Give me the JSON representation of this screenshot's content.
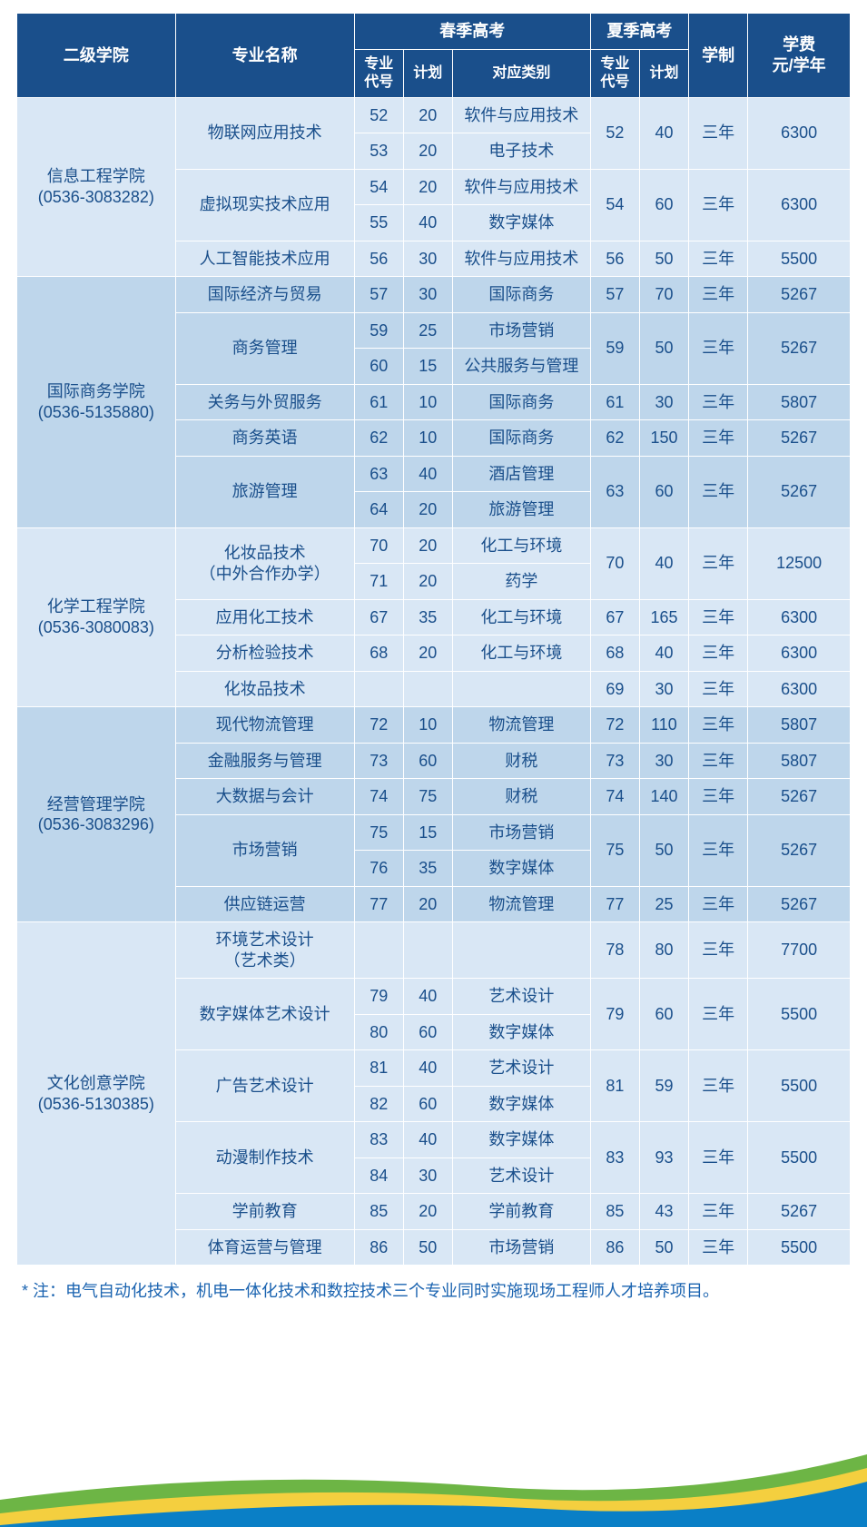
{
  "headers": {
    "college": "二级学院",
    "major": "专业名称",
    "spring": "春季高考",
    "summer": "夏季高考",
    "system": "学制",
    "tuition": "学费\n元/学年",
    "code": "专业\n代号",
    "plan": "计划",
    "category": "对应类别"
  },
  "note": "* 注：电气自动化技术，机电一体化技术和数控技术三个专业同时实施现场工程师人才培养项目。",
  "colors": {
    "header_bg": "#1a4f8b",
    "header_fg": "#ffffff",
    "row_light": "#d9e7f5",
    "row_dark": "#bed6eb",
    "text": "#1a4f8b",
    "note": "#1a63b0",
    "wave_green": "#6db545",
    "wave_yellow": "#f4cf3f",
    "wave_blue": "#0a7fc6"
  },
  "groups": [
    {
      "college": "信息工程学院\n(0536-3083282)",
      "shade": "even",
      "rows": [
        {
          "major": "物联网应用技术",
          "mrs": 2,
          "sc": "52",
          "sp": "20",
          "cat": "软件与应用技术",
          "xc": "52",
          "xcr": 2,
          "xp": "40",
          "xpr": 2,
          "sys": "三年",
          "sysr": 2,
          "fee": "6300",
          "feer": 2
        },
        {
          "sc": "53",
          "sp": "20",
          "cat": "电子技术"
        },
        {
          "major": "虚拟现实技术应用",
          "mrs": 2,
          "sc": "54",
          "sp": "20",
          "cat": "软件与应用技术",
          "xc": "54",
          "xcr": 2,
          "xp": "60",
          "xpr": 2,
          "sys": "三年",
          "sysr": 2,
          "fee": "6300",
          "feer": 2
        },
        {
          "sc": "55",
          "sp": "40",
          "cat": "数字媒体"
        },
        {
          "major": "人工智能技术应用",
          "sc": "56",
          "sp": "30",
          "cat": "软件与应用技术",
          "xc": "56",
          "xp": "50",
          "sys": "三年",
          "fee": "5500"
        }
      ]
    },
    {
      "college": "国际商务学院\n(0536-5135880)",
      "shade": "odd",
      "rows": [
        {
          "major": "国际经济与贸易",
          "sc": "57",
          "sp": "30",
          "cat": "国际商务",
          "xc": "57",
          "xp": "70",
          "sys": "三年",
          "fee": "5267"
        },
        {
          "major": "商务管理",
          "mrs": 2,
          "sc": "59",
          "sp": "25",
          "cat": "市场营销",
          "xc": "59",
          "xcr": 2,
          "xp": "50",
          "xpr": 2,
          "sys": "三年",
          "sysr": 2,
          "fee": "5267",
          "feer": 2
        },
        {
          "sc": "60",
          "sp": "15",
          "cat": "公共服务与管理"
        },
        {
          "major": "关务与外贸服务",
          "sc": "61",
          "sp": "10",
          "cat": "国际商务",
          "xc": "61",
          "xp": "30",
          "sys": "三年",
          "fee": "5807"
        },
        {
          "major": "商务英语",
          "sc": "62",
          "sp": "10",
          "cat": "国际商务",
          "xc": "62",
          "xp": "150",
          "sys": "三年",
          "fee": "5267"
        },
        {
          "major": "旅游管理",
          "mrs": 2,
          "sc": "63",
          "sp": "40",
          "cat": "酒店管理",
          "xc": "63",
          "xcr": 2,
          "xp": "60",
          "xpr": 2,
          "sys": "三年",
          "sysr": 2,
          "fee": "5267",
          "feer": 2
        },
        {
          "sc": "64",
          "sp": "20",
          "cat": "旅游管理"
        }
      ]
    },
    {
      "college": "化学工程学院\n(0536-3080083)",
      "shade": "even",
      "rows": [
        {
          "major": "化妆品技术\n（中外合作办学）",
          "mrs": 2,
          "sc": "70",
          "sp": "20",
          "cat": "化工与环境",
          "xc": "70",
          "xcr": 2,
          "xp": "40",
          "xpr": 2,
          "sys": "三年",
          "sysr": 2,
          "fee": "12500",
          "feer": 2
        },
        {
          "sc": "71",
          "sp": "20",
          "cat": "药学"
        },
        {
          "major": "应用化工技术",
          "sc": "67",
          "sp": "35",
          "cat": "化工与环境",
          "xc": "67",
          "xp": "165",
          "sys": "三年",
          "fee": "6300"
        },
        {
          "major": "分析检验技术",
          "sc": "68",
          "sp": "20",
          "cat": "化工与环境",
          "xc": "68",
          "xp": "40",
          "sys": "三年",
          "fee": "6300"
        },
        {
          "major": "化妆品技术",
          "sc": "",
          "sp": "",
          "cat": "",
          "xc": "69",
          "xp": "30",
          "sys": "三年",
          "fee": "6300"
        }
      ]
    },
    {
      "college": "经营管理学院\n(0536-3083296)",
      "shade": "odd",
      "rows": [
        {
          "major": "现代物流管理",
          "sc": "72",
          "sp": "10",
          "cat": "物流管理",
          "xc": "72",
          "xp": "110",
          "sys": "三年",
          "fee": "5807"
        },
        {
          "major": "金融服务与管理",
          "sc": "73",
          "sp": "60",
          "cat": "财税",
          "xc": "73",
          "xp": "30",
          "sys": "三年",
          "fee": "5807"
        },
        {
          "major": "大数据与会计",
          "sc": "74",
          "sp": "75",
          "cat": "财税",
          "xc": "74",
          "xp": "140",
          "sys": "三年",
          "fee": "5267"
        },
        {
          "major": "市场营销",
          "mrs": 2,
          "sc": "75",
          "sp": "15",
          "cat": "市场营销",
          "xc": "75",
          "xcr": 2,
          "xp": "50",
          "xpr": 2,
          "sys": "三年",
          "sysr": 2,
          "fee": "5267",
          "feer": 2
        },
        {
          "sc": "76",
          "sp": "35",
          "cat": "数字媒体"
        },
        {
          "major": "供应链运营",
          "sc": "77",
          "sp": "20",
          "cat": "物流管理",
          "xc": "77",
          "xp": "25",
          "sys": "三年",
          "fee": "5267"
        }
      ]
    },
    {
      "college": "文化创意学院\n(0536-5130385)",
      "shade": "even",
      "rows": [
        {
          "major": "环境艺术设计\n（艺术类）",
          "sc": "",
          "sp": "",
          "cat": "",
          "xc": "78",
          "xp": "80",
          "sys": "三年",
          "fee": "7700"
        },
        {
          "major": "数字媒体艺术设计",
          "mrs": 2,
          "sc": "79",
          "sp": "40",
          "cat": "艺术设计",
          "xc": "79",
          "xcr": 2,
          "xp": "60",
          "xpr": 2,
          "sys": "三年",
          "sysr": 2,
          "fee": "5500",
          "feer": 2
        },
        {
          "sc": "80",
          "sp": "60",
          "cat": "数字媒体"
        },
        {
          "major": "广告艺术设计",
          "mrs": 2,
          "sc": "81",
          "sp": "40",
          "cat": "艺术设计",
          "xc": "81",
          "xcr": 2,
          "xp": "59",
          "xpr": 2,
          "sys": "三年",
          "sysr": 2,
          "fee": "5500",
          "feer": 2
        },
        {
          "sc": "82",
          "sp": "60",
          "cat": "数字媒体"
        },
        {
          "major": "动漫制作技术",
          "mrs": 2,
          "sc": "83",
          "sp": "40",
          "cat": "数字媒体",
          "xc": "83",
          "xcr": 2,
          "xp": "93",
          "xpr": 2,
          "sys": "三年",
          "sysr": 2,
          "fee": "5500",
          "feer": 2
        },
        {
          "sc": "84",
          "sp": "30",
          "cat": "艺术设计"
        },
        {
          "major": "学前教育",
          "sc": "85",
          "sp": "20",
          "cat": "学前教育",
          "xc": "85",
          "xp": "43",
          "sys": "三年",
          "fee": "5267"
        },
        {
          "major": "体育运营与管理",
          "sc": "86",
          "sp": "50",
          "cat": "市场营销",
          "xc": "86",
          "xp": "50",
          "sys": "三年",
          "fee": "5500"
        }
      ]
    }
  ]
}
